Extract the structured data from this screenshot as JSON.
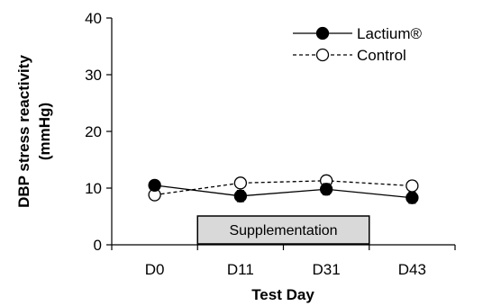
{
  "chart_data": {
    "type": "line",
    "title": "",
    "xlabel": "Test Day",
    "ylabel_line1": "DBP stress reactivity",
    "ylabel_line2": "(mmHg)",
    "categories": [
      "D0",
      "D11",
      "D31",
      "D43"
    ],
    "ylim": [
      0,
      40
    ],
    "yticks": [
      0,
      10,
      20,
      30,
      40
    ],
    "grid": false,
    "legend_position": "top-right",
    "series": [
      {
        "name": "Lactium®",
        "values": [
          10.5,
          8.6,
          9.8,
          8.3
        ],
        "errors": [
          0.6,
          1.0,
          1.0,
          1.0
        ],
        "line_style": "solid",
        "marker": "filled-circle",
        "color": "#000000"
      },
      {
        "name": "Control",
        "values": [
          8.8,
          10.9,
          11.3,
          10.4
        ],
        "errors": [
          0.6,
          0.8,
          0.9,
          0.9
        ],
        "line_style": "dashed",
        "marker": "open-circle",
        "color": "#000000"
      }
    ],
    "annotation": {
      "label": "Supplementation",
      "from": "D11",
      "to": "D43",
      "fill": "#d9d9d9"
    }
  }
}
